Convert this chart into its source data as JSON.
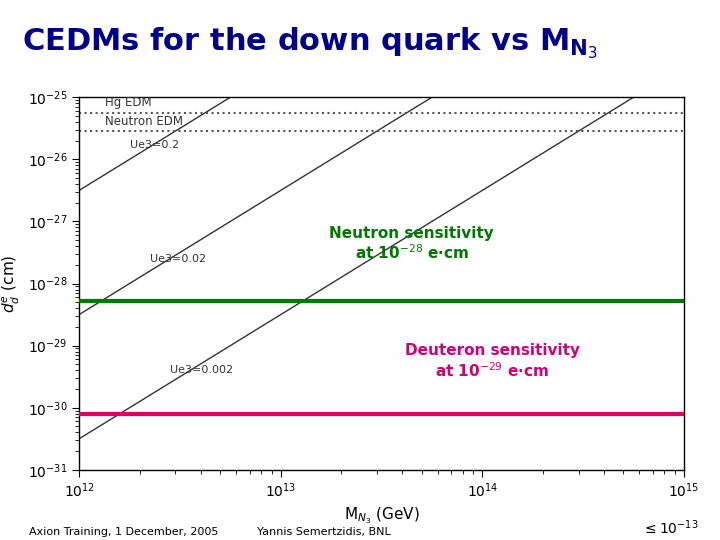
{
  "title_text": "CEDMs for the down quark vs M$_{\\mathregular{N}_3}$",
  "xlabel": "M$_{N_3}$ (GeV)",
  "ylabel": "$d_d^e$ (cm)",
  "xlim_log": [
    12,
    15
  ],
  "ylim_log": [
    -31,
    -25
  ],
  "background_color": "#ffffff",
  "plot_bg_color": "#ffffff",
  "hg_edm_value": -25.25,
  "neutron_edm_value": -25.55,
  "neutron_sensitivity": -28.28,
  "deuteron_sensitivity": -30.1,
  "diagonal_lines": [
    {
      "label": "Ue3=0.2",
      "intercept": -50.5,
      "slope": 2.0
    },
    {
      "label": "Ue3=0.02",
      "intercept": -52.5,
      "slope": 2.0
    },
    {
      "label": "Ue3=0.002",
      "intercept": -54.5,
      "slope": 2.0
    }
  ],
  "neutron_annot_color": "#007700",
  "deuteron_annot_color": "#cc0077",
  "neutron_line_color": "#007700",
  "deuteron_line_color": "#dd0066",
  "hg_color": "#555555",
  "neutron_edm_color": "#555555",
  "diag_color": "#333333",
  "footer_left": "Axion Training, 1 December, 2005",
  "footer_center": "Yannis Semertzidis, BNL",
  "footer_right": "$\\leq 10^{-13}$"
}
